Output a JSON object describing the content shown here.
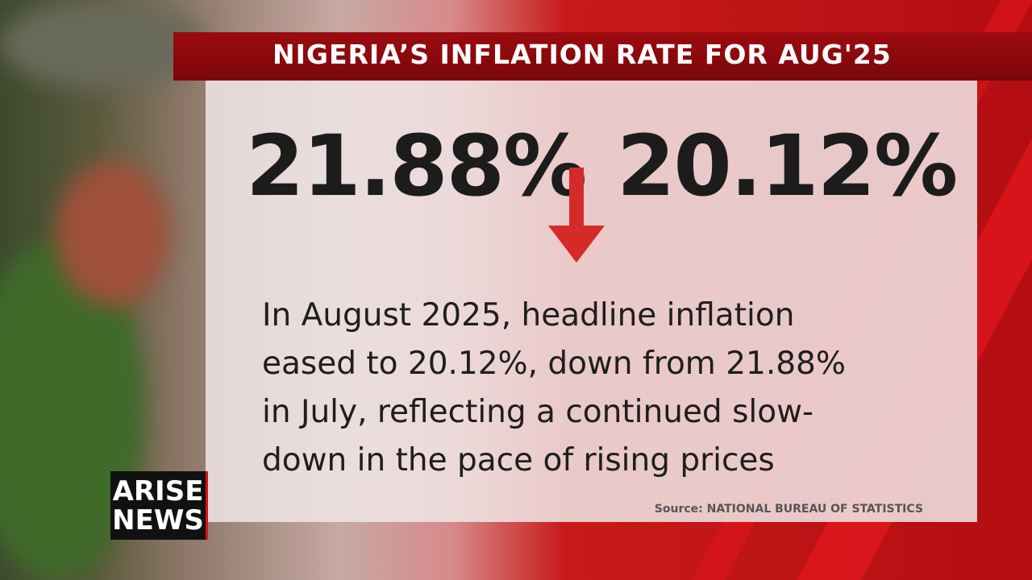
{
  "header": {
    "title": "NIGERIA’S INFLATION RATE FOR AUG'25"
  },
  "figures": {
    "previous": "21.88%",
    "current": "20.12%"
  },
  "body": {
    "lines": [
      "In August 2025, headline inflation",
      "eased to 20.12%, down from 21.88%",
      "in July, reflecting a continued slow-",
      "down in the pace of rising prices"
    ]
  },
  "source": "Source: NATIONAL BUREAU OF STATISTICS",
  "logo": {
    "top": "ARISE",
    "bottom": "NEWS"
  }
}
